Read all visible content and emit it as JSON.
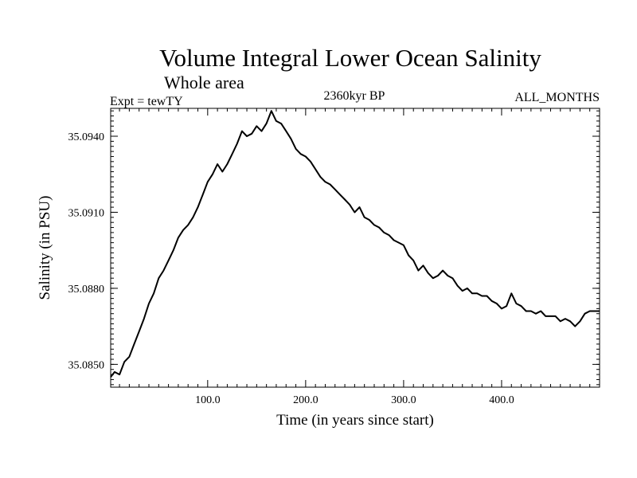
{
  "chart_data": {
    "type": "line",
    "title": "Volume Integral Lower Ocean Salinity",
    "subtitle": "Whole area",
    "experiment_label": "Expt = tewTY",
    "period_label": "2360kyr BP",
    "months_label": "ALL_MONTHS",
    "xlabel": "Time (in years since start)",
    "ylabel": "Salinity (in PSU)",
    "xlim": [
      1,
      500
    ],
    "ylim": [
      35.0841,
      35.0951
    ],
    "x_ticks": [
      100,
      200,
      300,
      400
    ],
    "x_tick_labels": [
      "100.0",
      "200.0",
      "300.0",
      "400.0"
    ],
    "y_ticks": [
      35.085,
      35.088,
      35.091,
      35.094
    ],
    "y_tick_labels": [
      "35.0850",
      "35.0880",
      "35.0910",
      "35.0940"
    ],
    "grid": false,
    "series": [
      {
        "name": "Salinity",
        "color": "#000000",
        "x": [
          1,
          5,
          10,
          15,
          20,
          25,
          30,
          35,
          40,
          45,
          50,
          55,
          60,
          65,
          70,
          75,
          80,
          85,
          90,
          95,
          100,
          105,
          110,
          115,
          120,
          125,
          130,
          135,
          140,
          145,
          150,
          155,
          160,
          165,
          170,
          175,
          180,
          185,
          190,
          195,
          200,
          205,
          210,
          215,
          220,
          225,
          230,
          235,
          240,
          245,
          250,
          255,
          260,
          265,
          270,
          275,
          280,
          285,
          290,
          295,
          300,
          305,
          310,
          315,
          320,
          325,
          330,
          335,
          340,
          345,
          350,
          355,
          360,
          365,
          370,
          375,
          380,
          385,
          390,
          395,
          400,
          405,
          410,
          415,
          420,
          425,
          430,
          435,
          440,
          445,
          450,
          455,
          460,
          465,
          470,
          475,
          480,
          485,
          490,
          495,
          500
        ],
        "values": [
          35.0845,
          35.0847,
          35.0846,
          35.0851,
          35.0853,
          35.0858,
          35.0863,
          35.0868,
          35.0874,
          35.0878,
          35.0884,
          35.0887,
          35.0891,
          35.0895,
          35.09,
          35.0903,
          35.0905,
          35.0908,
          35.0912,
          35.0917,
          35.0922,
          35.0925,
          35.0929,
          35.0926,
          35.0929,
          35.0933,
          35.0937,
          35.0942,
          35.094,
          35.0941,
          35.0944,
          35.0942,
          35.0945,
          35.095,
          35.0946,
          35.0945,
          35.0942,
          35.0939,
          35.0935,
          35.0933,
          35.0932,
          35.093,
          35.0927,
          35.0924,
          35.0922,
          35.0921,
          35.0919,
          35.0917,
          35.0915,
          35.0913,
          35.091,
          35.0912,
          35.0908,
          35.0907,
          35.0905,
          35.0904,
          35.0902,
          35.0901,
          35.0899,
          35.0898,
          35.0897,
          35.0893,
          35.0891,
          35.0887,
          35.0889,
          35.0886,
          35.0884,
          35.0885,
          35.0887,
          35.0885,
          35.0884,
          35.0881,
          35.0879,
          35.088,
          35.0878,
          35.0878,
          35.0877,
          35.0877,
          35.0875,
          35.0874,
          35.0872,
          35.0873,
          35.0878,
          35.0874,
          35.0873,
          35.0871,
          35.0871,
          35.087,
          35.0871,
          35.0869,
          35.0869,
          35.0869,
          35.0867,
          35.0868,
          35.0867,
          35.0865,
          35.0867,
          35.087,
          35.0871,
          35.0871,
          35.0871
        ]
      }
    ]
  }
}
